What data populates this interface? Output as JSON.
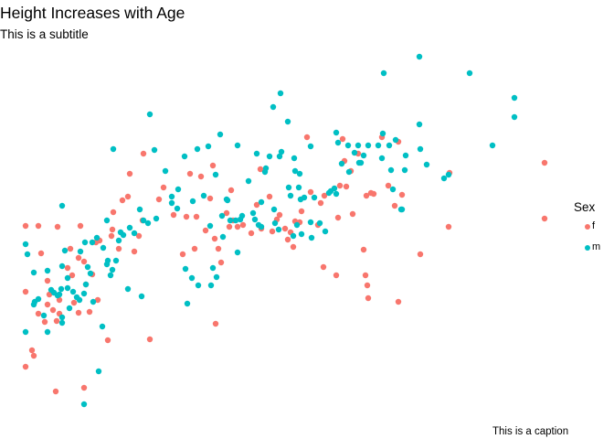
{
  "title": "Height Increases with Age",
  "subtitle": "This is a subtitle",
  "caption": "This is a caption",
  "legend": {
    "title": "Sex",
    "items": [
      {
        "label": "f",
        "color": "#F8766D"
      },
      {
        "label": "m",
        "color": "#00BFC4"
      }
    ]
  },
  "chart_data": {
    "type": "scatter",
    "title": "Height Increases with Age",
    "subtitle": "This is a subtitle",
    "caption": "This is a caption",
    "grid": false,
    "axes_visible": false,
    "legend_position": "right",
    "series": [
      {
        "name": "f",
        "color": "#F8766D",
        "points": [
          [
            28,
            247
          ],
          [
            28,
            319
          ],
          [
            28,
            401
          ],
          [
            35,
            383
          ],
          [
            37,
            389
          ],
          [
            42,
            247
          ],
          [
            42,
            343
          ],
          [
            45,
            277
          ],
          [
            49,
            352
          ],
          [
            52,
            307
          ],
          [
            52,
            333
          ],
          [
            54,
            322
          ],
          [
            58,
            339
          ],
          [
            61,
            428
          ],
          [
            62,
            351
          ],
          [
            63,
            248
          ],
          [
            65,
            328
          ],
          [
            65,
            343
          ],
          [
            74,
            293
          ],
          [
            77,
            272
          ],
          [
            79,
            301
          ],
          [
            81,
            331
          ],
          [
            86,
            282
          ],
          [
            86,
            342
          ],
          [
            88,
            247
          ],
          [
            92,
            286
          ],
          [
            92,
            424
          ],
          [
            94,
            311
          ],
          [
            98,
            341
          ],
          [
            101,
            300
          ],
          [
            105,
            265
          ],
          [
            107,
            328
          ],
          [
            109,
            263
          ],
          [
            118,
            372
          ],
          [
            122,
            258
          ],
          [
            123,
            251
          ],
          [
            124,
            232
          ],
          [
            130,
            272
          ],
          [
            134,
            219
          ],
          [
            140,
            215
          ],
          [
            142,
            190
          ],
          [
            147,
            275
          ],
          [
            152,
            258
          ],
          [
            156,
            241
          ],
          [
            157,
            168
          ],
          [
            164,
            371
          ],
          [
            174,
            218
          ],
          [
            179,
            205
          ],
          [
            190,
            235
          ],
          [
            200,
            278
          ],
          [
            204,
            237
          ],
          [
            208,
            190
          ],
          [
            213,
            272
          ],
          [
            215,
            237
          ],
          [
            220,
            193
          ],
          [
            225,
            252
          ],
          [
            230,
            217
          ],
          [
            233,
            181
          ],
          [
            235,
            261
          ],
          [
            236,
            354
          ],
          [
            239,
            272
          ],
          [
            242,
            287
          ],
          [
            248,
            233
          ],
          [
            251,
            248
          ],
          [
            253,
            208
          ],
          [
            255,
            241
          ],
          [
            260,
            248
          ],
          [
            266,
            246
          ],
          [
            275,
            255
          ],
          [
            281,
            224
          ],
          [
            285,
            185
          ],
          [
            286,
            250
          ],
          [
            295,
            215
          ],
          [
            298,
            253
          ],
          [
            303,
            240
          ],
          [
            306,
            235
          ],
          [
            312,
            250
          ],
          [
            315,
            262
          ],
          [
            318,
            254
          ],
          [
            321,
            270
          ],
          [
            323,
            242
          ],
          [
            328,
            243
          ],
          [
            330,
            231
          ],
          [
            336,
            150
          ],
          [
            340,
            210
          ],
          [
            348,
            246
          ],
          [
            351,
            222
          ],
          [
            354,
            292
          ],
          [
            355,
            214
          ],
          [
            368,
            301
          ],
          [
            370,
            238
          ],
          [
            372,
            203
          ],
          [
            375,
            152
          ],
          [
            377,
            176
          ],
          [
            379,
            204
          ],
          [
            384,
            187
          ],
          [
            386,
            234
          ],
          [
            392,
            168
          ],
          [
            398,
            273
          ],
          [
            400,
            301
          ],
          [
            401,
            214
          ],
          [
            402,
            312
          ],
          [
            403,
            326
          ],
          [
            406,
            211
          ],
          [
            409,
            212
          ],
          [
            418,
            150
          ],
          [
            425,
            203
          ],
          [
            432,
            225
          ],
          [
            436,
            155
          ],
          [
            436,
            330
          ],
          [
            440,
            213
          ],
          [
            460,
            278
          ],
          [
            491,
            248
          ],
          [
            492,
            189
          ],
          [
            596,
            178
          ],
          [
            596,
            239
          ]
        ]
      },
      {
        "name": "m",
        "color": "#00BFC4",
        "points": [
          [
            28,
            267
          ],
          [
            28,
            363
          ],
          [
            30,
            278
          ],
          [
            37,
            298
          ],
          [
            37,
            333
          ],
          [
            38,
            330
          ],
          [
            42,
            327
          ],
          [
            48,
            345
          ],
          [
            52,
            296
          ],
          [
            52,
            363
          ],
          [
            56,
            317
          ],
          [
            59,
            320
          ],
          [
            63,
            323
          ],
          [
            65,
            322
          ],
          [
            67,
            316
          ],
          [
            68,
            225
          ],
          [
            68,
            291
          ],
          [
            68,
            347
          ],
          [
            68,
            353
          ],
          [
            71,
            274
          ],
          [
            74,
            304
          ],
          [
            74,
            315
          ],
          [
            76,
            337
          ],
          [
            80,
            319
          ],
          [
            84,
            325
          ],
          [
            87,
            328
          ],
          [
            88,
            275
          ],
          [
            92,
            442
          ],
          [
            92,
            321
          ],
          [
            93,
            265
          ],
          [
            94,
            311
          ],
          [
            96,
            292
          ],
          [
            99,
            299
          ],
          [
            101,
            265
          ],
          [
            102,
            330
          ],
          [
            106,
            260
          ],
          [
            108,
            406
          ],
          [
            112,
            357
          ],
          [
            113,
            271
          ],
          [
            117,
            241
          ],
          [
            117,
            289
          ],
          [
            118,
            285
          ],
          [
            121,
            301
          ],
          [
            123,
            295
          ],
          [
            124,
            163
          ],
          [
            127,
            285
          ],
          [
            130,
            263
          ],
          [
            132,
            254
          ],
          [
            135,
            257
          ],
          [
            140,
            316
          ],
          [
            142,
            249
          ],
          [
            147,
            255
          ],
          [
            153,
            229
          ],
          [
            155,
            324
          ],
          [
            157,
            241
          ],
          [
            162,
            244
          ],
          [
            164,
            125
          ],
          [
            169,
            164
          ],
          [
            171,
            239
          ],
          [
            181,
            187
          ],
          [
            188,
            215
          ],
          [
            188,
            222
          ],
          [
            194,
            228
          ],
          [
            195,
            207
          ],
          [
            202,
            171
          ],
          [
            203,
            294
          ],
          [
            205,
            332
          ],
          [
            210,
            304
          ],
          [
            211,
            220
          ],
          [
            216,
            163
          ],
          [
            217,
            312
          ],
          [
            223,
            214
          ],
          [
            228,
            160
          ],
          [
            230,
            247
          ],
          [
            231,
            312
          ],
          [
            233,
            293
          ],
          [
            236,
            191
          ],
          [
            237,
            303
          ],
          [
            241,
            147
          ],
          [
            243,
            236
          ],
          [
            244,
            259
          ],
          [
            248,
            218
          ],
          [
            249,
            219
          ],
          [
            252,
            241
          ],
          [
            258,
            241
          ],
          [
            260,
            159
          ],
          [
            260,
            276
          ],
          [
            263,
            240
          ],
          [
            265,
            236
          ],
          [
            272,
            198
          ],
          [
            277,
            233
          ],
          [
            279,
            240
          ],
          [
            281,
            168
          ],
          [
            283,
            246
          ],
          [
            286,
            221
          ],
          [
            286,
            248
          ],
          [
            290,
            188
          ],
          [
            291,
            184
          ],
          [
            295,
            171
          ],
          [
            299,
            117
          ],
          [
            300,
            229
          ],
          [
            301,
            244
          ],
          [
            305,
            251
          ],
          [
            306,
            171
          ],
          [
            307,
            102
          ],
          [
            308,
            166
          ],
          [
            315,
            133
          ],
          [
            316,
            205
          ],
          [
            318,
            214
          ],
          [
            321,
            258
          ],
          [
            322,
            173
          ],
          [
            323,
            187
          ],
          [
            325,
            246
          ],
          [
            327,
            205
          ],
          [
            328,
            190
          ],
          [
            329,
            218
          ],
          [
            330,
            256
          ],
          [
            333,
            216
          ],
          [
            340,
            160
          ],
          [
            340,
            243
          ],
          [
            341,
            260
          ],
          [
            344,
            216
          ],
          [
            350,
            244
          ],
          [
            356,
            253
          ],
          [
            360,
            211
          ],
          [
            362,
            209
          ],
          [
            366,
            206
          ],
          [
            368,
            145
          ],
          [
            368,
            212
          ],
          [
            370,
            156
          ],
          [
            374,
            179
          ],
          [
            381,
            159
          ],
          [
            382,
            188
          ],
          [
            388,
            167
          ],
          [
            392,
            159
          ],
          [
            393,
            178
          ],
          [
            395,
            178
          ],
          [
            398,
            170
          ],
          [
            403,
            159
          ],
          [
            414,
            159
          ],
          [
            418,
            173
          ],
          [
            419,
            146
          ],
          [
            420,
            80
          ],
          [
            426,
            159
          ],
          [
            428,
            186
          ],
          [
            430,
            207
          ],
          [
            433,
            153
          ],
          [
            439,
            229
          ],
          [
            440,
            229
          ],
          [
            443,
            186
          ],
          [
            444,
            170
          ],
          [
            459,
            62
          ],
          [
            459,
            136
          ],
          [
            460,
            163
          ],
          [
            467,
            180
          ],
          [
            486,
            195
          ],
          [
            491,
            191
          ],
          [
            514,
            80
          ],
          [
            539,
            159
          ],
          [
            563,
            107
          ],
          [
            563,
            128
          ]
        ]
      }
    ]
  }
}
